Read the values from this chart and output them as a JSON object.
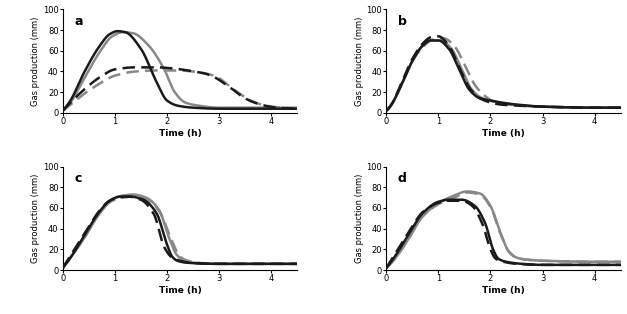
{
  "panels": [
    "a",
    "b",
    "c",
    "d"
  ],
  "xlim": [
    0,
    4.5
  ],
  "ylim": [
    0,
    100
  ],
  "xlabel": "Time (h)",
  "ylabel": "Gas production (mm)",
  "yticks": [
    0,
    20,
    40,
    60,
    80,
    100
  ],
  "xticks": [
    0,
    1,
    2,
    3,
    4
  ],
  "panel_a": {
    "solid_black": {
      "pts": [
        [
          0,
          2
        ],
        [
          0.15,
          12
        ],
        [
          0.4,
          38
        ],
        [
          0.7,
          64
        ],
        [
          0.9,
          76
        ],
        [
          1.05,
          79
        ],
        [
          1.2,
          78
        ],
        [
          1.5,
          62
        ],
        [
          1.8,
          30
        ],
        [
          2.0,
          12
        ],
        [
          2.2,
          7
        ],
        [
          2.5,
          5
        ],
        [
          3.0,
          4
        ],
        [
          3.5,
          4
        ],
        [
          4.5,
          4
        ]
      ]
    },
    "solid_grey": {
      "pts": [
        [
          0,
          2
        ],
        [
          0.15,
          10
        ],
        [
          0.4,
          32
        ],
        [
          0.7,
          58
        ],
        [
          0.95,
          74
        ],
        [
          1.15,
          78
        ],
        [
          1.35,
          77
        ],
        [
          1.65,
          65
        ],
        [
          1.95,
          42
        ],
        [
          2.15,
          20
        ],
        [
          2.35,
          10
        ],
        [
          2.6,
          7
        ],
        [
          3.0,
          5
        ],
        [
          3.5,
          5
        ],
        [
          4.5,
          5
        ]
      ]
    },
    "dashed_black": {
      "pts": [
        [
          0,
          2
        ],
        [
          0.15,
          10
        ],
        [
          0.4,
          22
        ],
        [
          0.7,
          34
        ],
        [
          1.0,
          42
        ],
        [
          1.4,
          44
        ],
        [
          1.8,
          44
        ],
        [
          2.1,
          43
        ],
        [
          2.4,
          41
        ],
        [
          2.8,
          37
        ],
        [
          3.2,
          25
        ],
        [
          3.5,
          14
        ],
        [
          3.8,
          8
        ],
        [
          4.1,
          5
        ],
        [
          4.5,
          4
        ]
      ]
    },
    "dashed_grey": {
      "pts": [
        [
          0,
          2
        ],
        [
          0.15,
          8
        ],
        [
          0.4,
          18
        ],
        [
          0.7,
          28
        ],
        [
          1.0,
          36
        ],
        [
          1.4,
          40
        ],
        [
          1.8,
          41
        ],
        [
          2.2,
          41
        ],
        [
          2.5,
          40
        ],
        [
          2.9,
          36
        ],
        [
          3.3,
          22
        ],
        [
          3.6,
          12
        ],
        [
          3.9,
          7
        ],
        [
          4.2,
          5
        ],
        [
          4.5,
          4
        ]
      ]
    }
  },
  "panel_b": {
    "solid_black": {
      "pts": [
        [
          0,
          2
        ],
        [
          0.1,
          8
        ],
        [
          0.3,
          28
        ],
        [
          0.5,
          50
        ],
        [
          0.7,
          65
        ],
        [
          0.85,
          70
        ],
        [
          1.0,
          70
        ],
        [
          1.2,
          62
        ],
        [
          1.4,
          42
        ],
        [
          1.6,
          22
        ],
        [
          1.8,
          14
        ],
        [
          2.0,
          12
        ],
        [
          2.2,
          10
        ],
        [
          2.5,
          8
        ],
        [
          3.0,
          6
        ],
        [
          4.0,
          5
        ],
        [
          4.5,
          5
        ]
      ]
    },
    "solid_grey": {
      "pts": [
        [
          0,
          2
        ],
        [
          0.1,
          8
        ],
        [
          0.3,
          28
        ],
        [
          0.5,
          50
        ],
        [
          0.7,
          65
        ],
        [
          0.88,
          70
        ],
        [
          1.05,
          70
        ],
        [
          1.25,
          62
        ],
        [
          1.45,
          42
        ],
        [
          1.65,
          22
        ],
        [
          1.85,
          14
        ],
        [
          2.05,
          11
        ],
        [
          2.3,
          9
        ],
        [
          2.6,
          7
        ],
        [
          3.0,
          6
        ],
        [
          4.0,
          5
        ],
        [
          4.5,
          5
        ]
      ]
    },
    "dashed_black": {
      "pts": [
        [
          0,
          2
        ],
        [
          0.1,
          8
        ],
        [
          0.3,
          30
        ],
        [
          0.5,
          52
        ],
        [
          0.7,
          67
        ],
        [
          0.85,
          73
        ],
        [
          1.0,
          74
        ],
        [
          1.2,
          65
        ],
        [
          1.4,
          44
        ],
        [
          1.6,
          24
        ],
        [
          1.8,
          14
        ],
        [
          2.0,
          10
        ],
        [
          2.2,
          8
        ],
        [
          2.5,
          7
        ],
        [
          3.0,
          6
        ],
        [
          4.0,
          5
        ],
        [
          4.5,
          5
        ]
      ]
    },
    "dashed_grey": {
      "pts": [
        [
          0,
          2
        ],
        [
          0.1,
          8
        ],
        [
          0.3,
          28
        ],
        [
          0.5,
          50
        ],
        [
          0.75,
          66
        ],
        [
          0.9,
          71
        ],
        [
          1.1,
          72
        ],
        [
          1.3,
          65
        ],
        [
          1.5,
          47
        ],
        [
          1.7,
          27
        ],
        [
          1.9,
          16
        ],
        [
          2.1,
          10
        ],
        [
          2.35,
          8
        ],
        [
          2.6,
          7
        ],
        [
          3.0,
          6
        ],
        [
          4.0,
          5
        ],
        [
          4.5,
          5
        ]
      ]
    }
  },
  "panel_c": {
    "solid_black": {
      "pts": [
        [
          0,
          2
        ],
        [
          0.15,
          12
        ],
        [
          0.4,
          32
        ],
        [
          0.7,
          56
        ],
        [
          0.9,
          67
        ],
        [
          1.1,
          71
        ],
        [
          1.3,
          71
        ],
        [
          1.55,
          68
        ],
        [
          1.8,
          55
        ],
        [
          2.0,
          25
        ],
        [
          2.1,
          13
        ],
        [
          2.2,
          9
        ],
        [
          2.4,
          7
        ],
        [
          3.0,
          6
        ],
        [
          4.0,
          6
        ],
        [
          4.5,
          6
        ]
      ]
    },
    "solid_grey": {
      "pts": [
        [
          0,
          2
        ],
        [
          0.15,
          12
        ],
        [
          0.4,
          30
        ],
        [
          0.7,
          54
        ],
        [
          0.95,
          68
        ],
        [
          1.15,
          72
        ],
        [
          1.35,
          73
        ],
        [
          1.6,
          70
        ],
        [
          1.85,
          58
        ],
        [
          2.05,
          30
        ],
        [
          2.2,
          14
        ],
        [
          2.35,
          9
        ],
        [
          2.5,
          7
        ],
        [
          3.0,
          6
        ],
        [
          4.0,
          6
        ],
        [
          4.5,
          6
        ]
      ]
    },
    "dashed_black": {
      "pts": [
        [
          0,
          2
        ],
        [
          0.15,
          14
        ],
        [
          0.4,
          34
        ],
        [
          0.7,
          57
        ],
        [
          0.9,
          67
        ],
        [
          1.05,
          70
        ],
        [
          1.25,
          71
        ],
        [
          1.5,
          68
        ],
        [
          1.75,
          54
        ],
        [
          1.95,
          22
        ],
        [
          2.1,
          12
        ],
        [
          2.25,
          9
        ],
        [
          2.45,
          7
        ],
        [
          3.0,
          6
        ],
        [
          4.0,
          6
        ],
        [
          4.5,
          6
        ]
      ]
    },
    "dashed_grey": {
      "pts": [
        [
          0,
          2
        ],
        [
          0.15,
          12
        ],
        [
          0.4,
          30
        ],
        [
          0.7,
          55
        ],
        [
          0.95,
          67
        ],
        [
          1.15,
          70
        ],
        [
          1.35,
          71
        ],
        [
          1.6,
          69
        ],
        [
          1.85,
          57
        ],
        [
          2.1,
          28
        ],
        [
          2.25,
          13
        ],
        [
          2.4,
          9
        ],
        [
          2.6,
          7
        ],
        [
          3.0,
          6
        ],
        [
          4.0,
          6
        ],
        [
          4.5,
          6
        ]
      ]
    }
  },
  "panel_d": {
    "solid_black": {
      "pts": [
        [
          0,
          2
        ],
        [
          0.15,
          12
        ],
        [
          0.4,
          32
        ],
        [
          0.7,
          55
        ],
        [
          1.0,
          66
        ],
        [
          1.2,
          68
        ],
        [
          1.45,
          68
        ],
        [
          1.7,
          62
        ],
        [
          1.9,
          45
        ],
        [
          2.05,
          20
        ],
        [
          2.15,
          11
        ],
        [
          2.3,
          8
        ],
        [
          2.6,
          6
        ],
        [
          3.0,
          5
        ],
        [
          4.0,
          5
        ],
        [
          4.5,
          5
        ]
      ]
    },
    "solid_grey": {
      "pts": [
        [
          0,
          2
        ],
        [
          0.15,
          10
        ],
        [
          0.4,
          28
        ],
        [
          0.7,
          52
        ],
        [
          1.05,
          66
        ],
        [
          1.3,
          72
        ],
        [
          1.55,
          76
        ],
        [
          1.8,
          74
        ],
        [
          2.0,
          62
        ],
        [
          2.2,
          35
        ],
        [
          2.35,
          18
        ],
        [
          2.5,
          12
        ],
        [
          2.7,
          10
        ],
        [
          3.0,
          9
        ],
        [
          4.0,
          8
        ],
        [
          4.5,
          8
        ]
      ]
    },
    "dashed_black": {
      "pts": [
        [
          0,
          2
        ],
        [
          0.15,
          14
        ],
        [
          0.4,
          34
        ],
        [
          0.7,
          56
        ],
        [
          1.0,
          65
        ],
        [
          1.2,
          67
        ],
        [
          1.45,
          67
        ],
        [
          1.65,
          62
        ],
        [
          1.85,
          44
        ],
        [
          2.0,
          20
        ],
        [
          2.1,
          11
        ],
        [
          2.25,
          8
        ],
        [
          2.5,
          6
        ],
        [
          3.0,
          5
        ],
        [
          4.0,
          5
        ],
        [
          4.5,
          5
        ]
      ]
    },
    "dashed_grey": {
      "pts": [
        [
          0,
          2
        ],
        [
          0.15,
          10
        ],
        [
          0.4,
          28
        ],
        [
          0.7,
          52
        ],
        [
          1.05,
          65
        ],
        [
          1.3,
          70
        ],
        [
          1.55,
          75
        ],
        [
          1.8,
          73
        ],
        [
          2.0,
          61
        ],
        [
          2.2,
          34
        ],
        [
          2.35,
          18
        ],
        [
          2.5,
          12
        ],
        [
          2.7,
          10
        ],
        [
          3.0,
          9
        ],
        [
          4.0,
          8
        ],
        [
          4.5,
          8
        ]
      ]
    }
  },
  "color_black": "#1a1a1a",
  "color_grey": "#888888",
  "lw_solid": 1.8,
  "lw_dashed": 1.8
}
